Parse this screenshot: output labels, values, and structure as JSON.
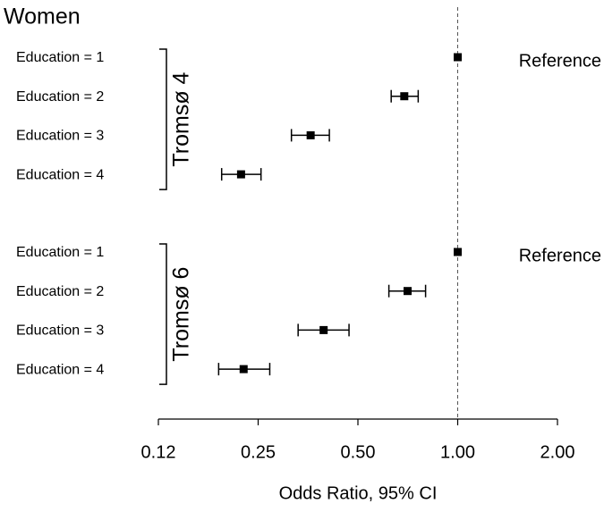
{
  "chart_data": {
    "type": "forest",
    "title": "Women",
    "x_label": "Odds Ratio, 95% CI",
    "log_scale": true,
    "xlim": [
      0.125,
      2
    ],
    "xticks": [
      {
        "value": 0.125,
        "label": "0.12"
      },
      0.25,
      {
        "value": 0.5,
        "label": "0.50"
      },
      {
        "value": 1,
        "label": "1.00"
      },
      {
        "value": 2,
        "label": "2.00"
      }
    ],
    "reference_line": 1,
    "color": "#000000",
    "groups": [
      {
        "name": "Tromsø 4",
        "rows": [
          {
            "label": "Education = 1",
            "value": 1,
            "lower": null,
            "upper": null,
            "annotation": "Reference"
          },
          {
            "label": "Education = 2",
            "value": 0.69,
            "lower": 0.63,
            "upper": 0.76
          },
          {
            "label": "Education = 3",
            "value": 0.36,
            "lower": 0.315,
            "upper": 0.41
          },
          {
            "label": "Education = 4",
            "value": 0.222,
            "lower": 0.194,
            "upper": 0.255
          }
        ]
      },
      {
        "name": "Tromsø 6",
        "rows": [
          {
            "label": "Education = 1",
            "value": 1,
            "lower": null,
            "upper": null,
            "annotation": "Reference"
          },
          {
            "label": "Education = 2",
            "value": 0.706,
            "lower": 0.62,
            "upper": 0.8
          },
          {
            "label": "Education = 3",
            "value": 0.394,
            "lower": 0.33,
            "upper": 0.47
          },
          {
            "label": "Education = 4",
            "value": 0.226,
            "lower": 0.19,
            "upper": 0.271
          }
        ]
      }
    ]
  }
}
